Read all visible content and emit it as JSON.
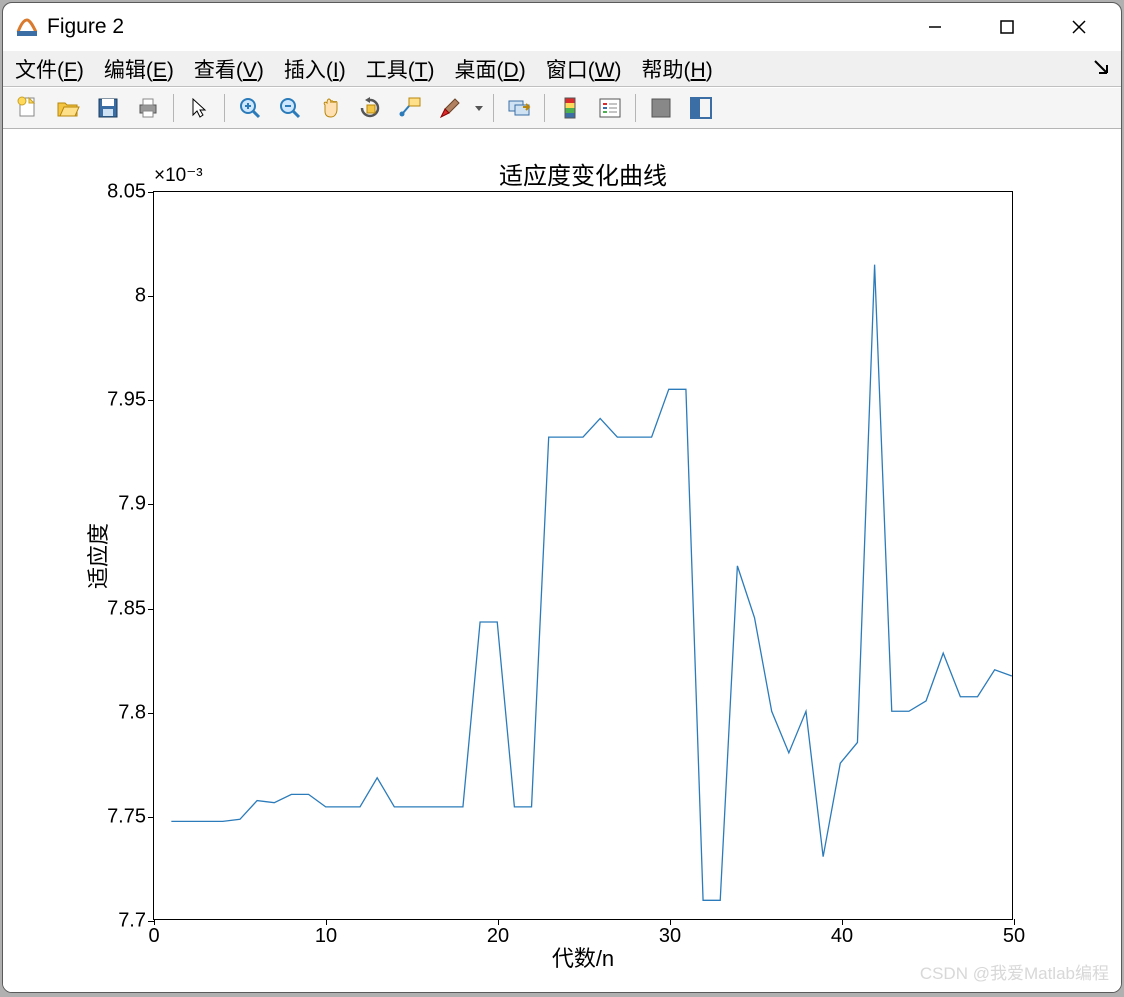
{
  "window": {
    "title": "Figure 2",
    "minimize": "–",
    "maximize": "☐",
    "close": "✕"
  },
  "menubar": {
    "items": [
      {
        "label": "文件",
        "key": "F"
      },
      {
        "label": "编辑",
        "key": "E"
      },
      {
        "label": "查看",
        "key": "V"
      },
      {
        "label": "插入",
        "key": "I"
      },
      {
        "label": "工具",
        "key": "T"
      },
      {
        "label": "桌面",
        "key": "D"
      },
      {
        "label": "窗口",
        "key": "W"
      },
      {
        "label": "帮助",
        "key": "H"
      }
    ]
  },
  "toolbar": {
    "icons": [
      "new-file",
      "open-file",
      "save",
      "print",
      "|",
      "pointer",
      "|",
      "zoom-in",
      "zoom-out",
      "pan",
      "rotate",
      "data-cursor",
      "brush",
      "dropdown",
      "|",
      "link",
      "|",
      "colorbar",
      "legend",
      "|",
      "grid",
      "dock"
    ]
  },
  "chart": {
    "type": "line",
    "title": "适应度变化曲线",
    "xlabel": "代数/n",
    "ylabel": "适应度",
    "exponent": "×10⁻³",
    "xlim": [
      0,
      50
    ],
    "ylim": [
      7.7,
      8.05
    ],
    "xticks": [
      0,
      10,
      20,
      30,
      40,
      50
    ],
    "yticks": [
      7.7,
      7.75,
      7.8,
      7.85,
      7.9,
      7.95,
      8,
      8.05
    ],
    "line_color": "#2b7bba",
    "line_width": 1.3,
    "background_color": "#ffffff",
    "axes_color": "#000000",
    "title_fontsize": 24,
    "label_fontsize": 22,
    "tick_fontsize": 20,
    "x": [
      1,
      2,
      3,
      4,
      5,
      6,
      7,
      8,
      9,
      10,
      11,
      12,
      13,
      14,
      15,
      16,
      17,
      18,
      19,
      20,
      21,
      22,
      23,
      24,
      25,
      26,
      27,
      28,
      29,
      30,
      31,
      32,
      33,
      34,
      35,
      36,
      37,
      38,
      39,
      40,
      41,
      42,
      43,
      44,
      45,
      46,
      47,
      48,
      49,
      50
    ],
    "y": [
      7.747,
      7.747,
      7.747,
      7.747,
      7.748,
      7.757,
      7.756,
      7.76,
      7.76,
      7.754,
      7.754,
      7.754,
      7.768,
      7.754,
      7.754,
      7.754,
      7.754,
      7.754,
      7.843,
      7.843,
      7.754,
      7.754,
      7.932,
      7.932,
      7.932,
      7.941,
      7.932,
      7.932,
      7.932,
      7.955,
      7.955,
      7.709,
      7.709,
      7.87,
      7.845,
      7.8,
      7.78,
      7.8,
      7.73,
      7.775,
      7.785,
      8.015,
      7.8,
      7.8,
      7.805,
      7.828,
      7.807,
      7.807,
      7.82,
      7.817
    ]
  },
  "watermark": "CSDN @我爱Matlab编程"
}
